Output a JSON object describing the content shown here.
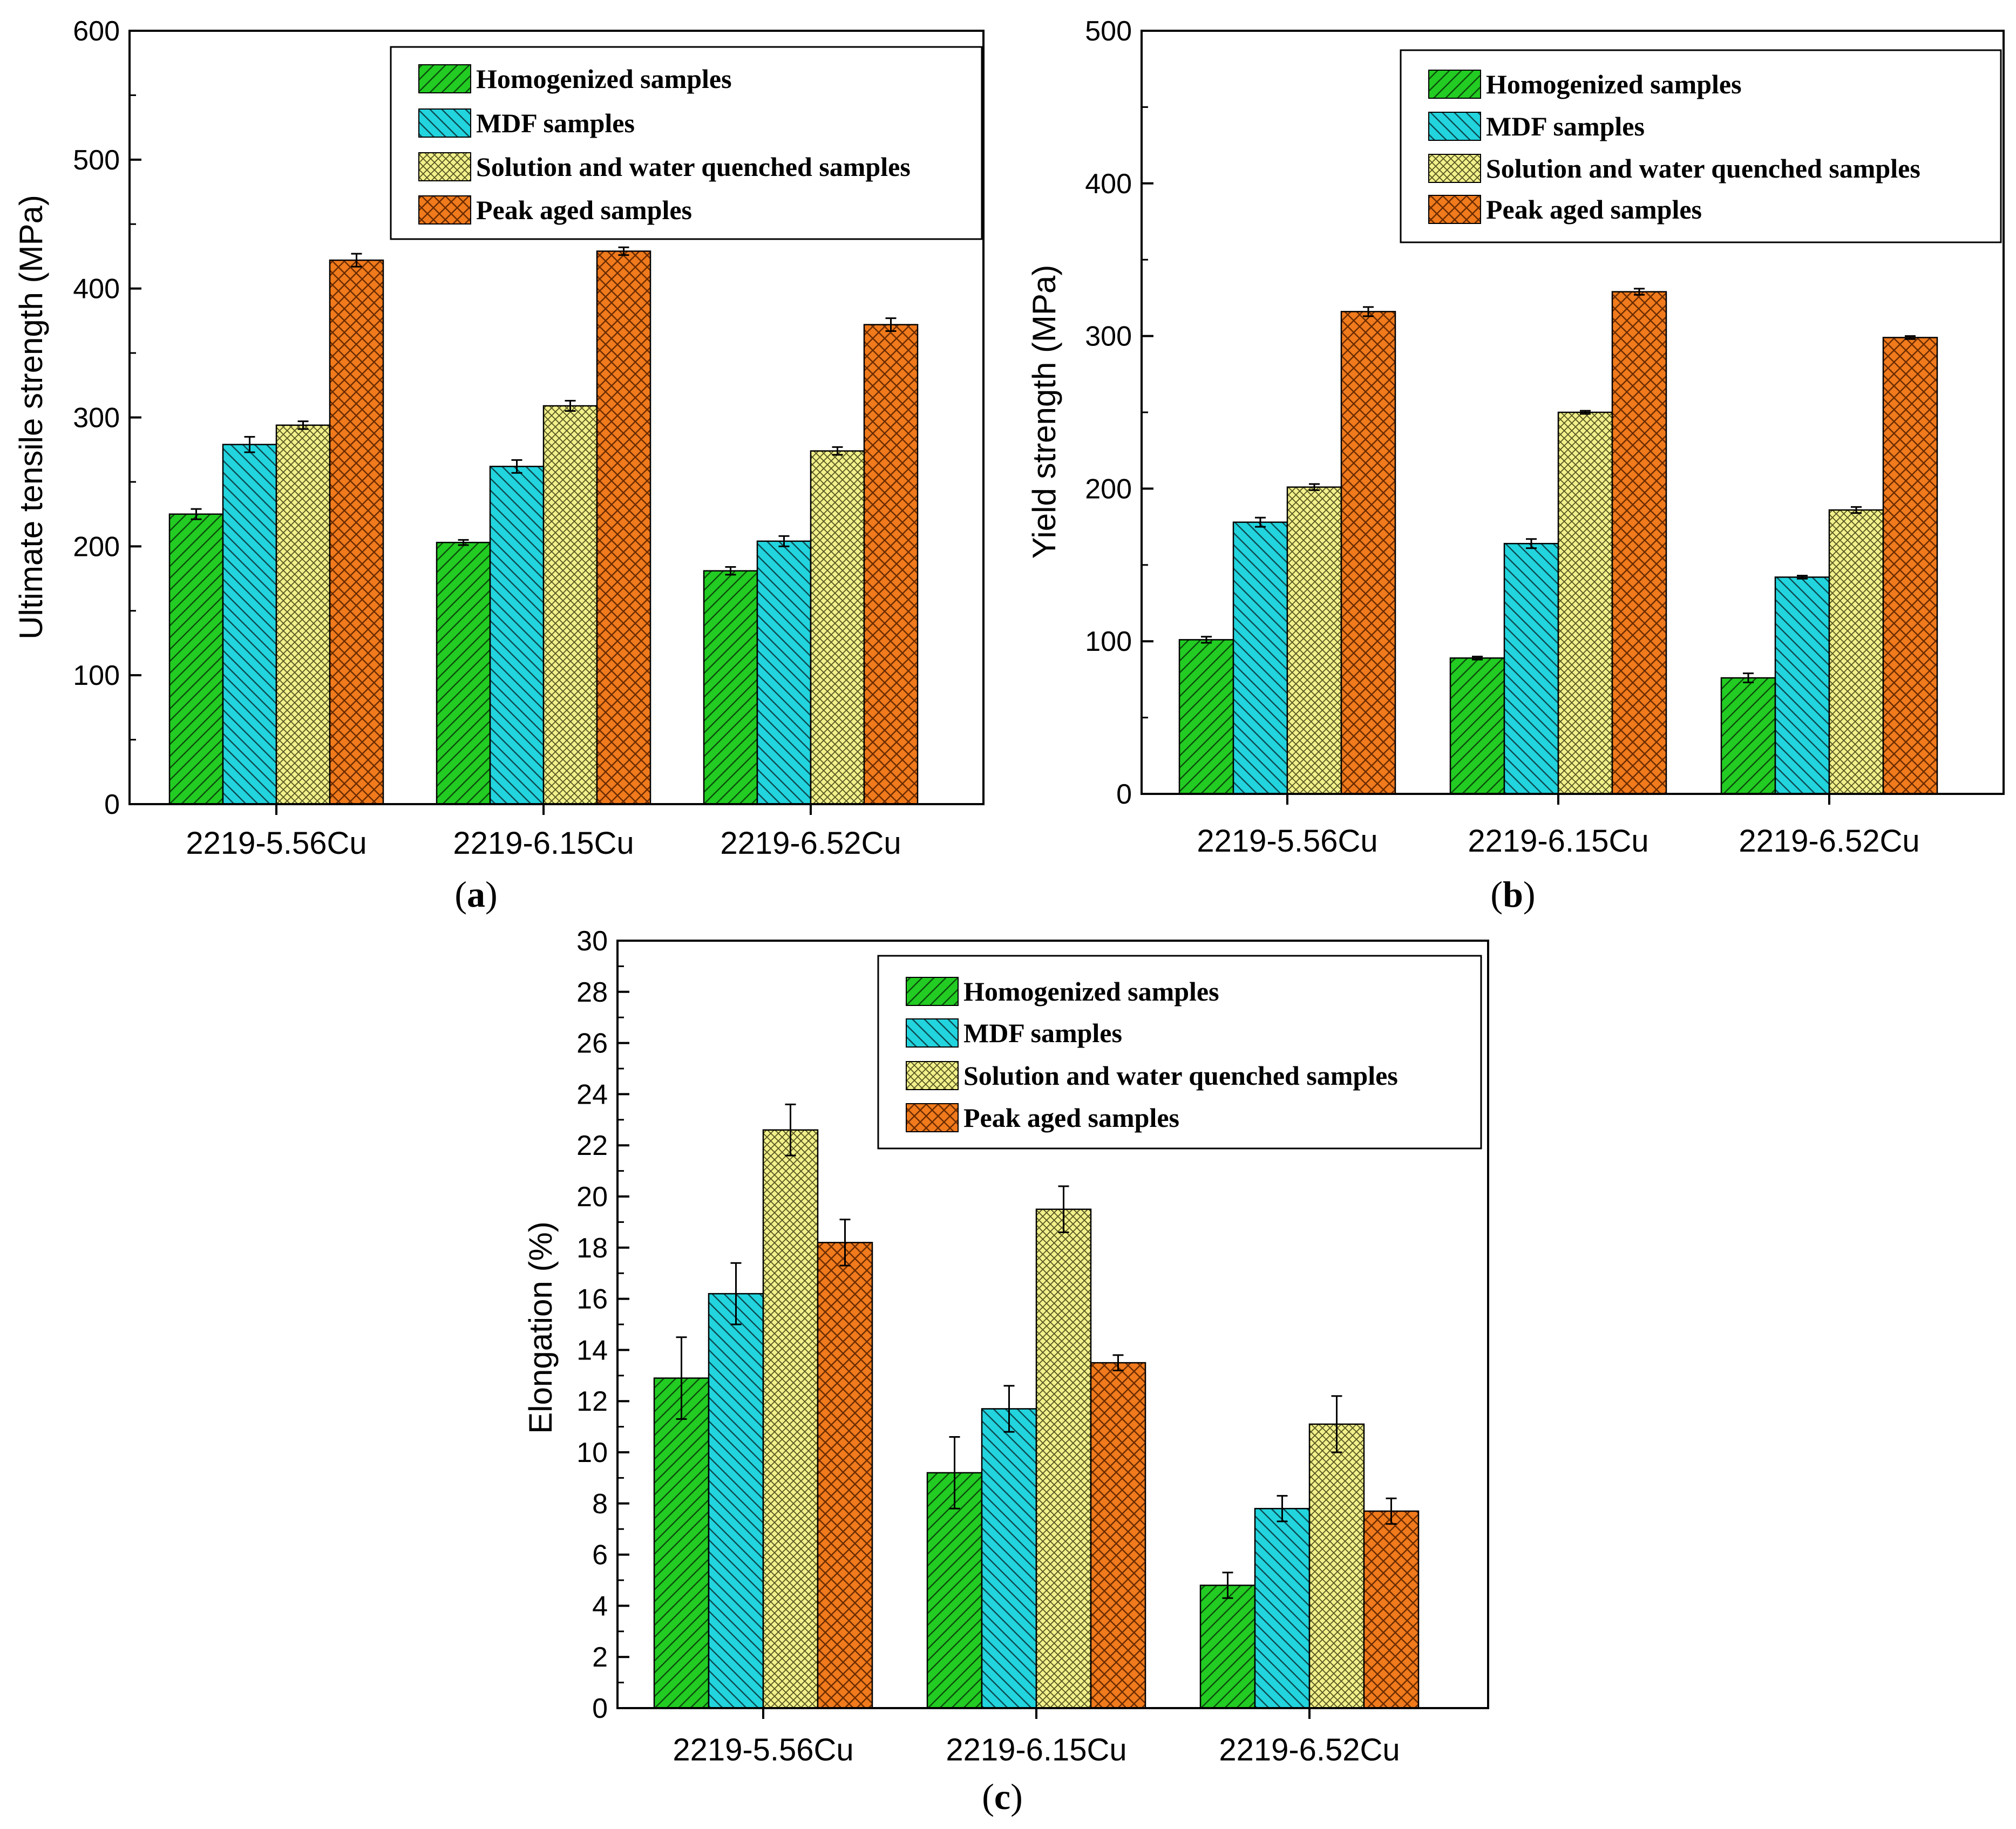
{
  "figure": {
    "legend_entries": [
      "Homogenized samples",
      "MDF samples",
      "Solution and water quenched samples",
      "Peak aged samples"
    ],
    "series_colors": [
      "#22cc22",
      "#22d4dd",
      "#f2f08a",
      "#f07a1c"
    ]
  },
  "chart_data": [
    {
      "type": "bar",
      "panel_label_open": "(",
      "panel_label_letter": "a",
      "panel_label_close": ")",
      "ylabel": "Ultimate tensile strength (MPa)",
      "xlabel": "",
      "ylim": [
        0,
        600
      ],
      "yticks": [
        0,
        100,
        200,
        300,
        400,
        500,
        600
      ],
      "categories": [
        "2219-5.56Cu",
        "2219-6.15Cu",
        "2219-6.52Cu"
      ],
      "legend_position": "top-right",
      "series": [
        {
          "name": "Homogenized samples",
          "values": [
            225,
            203,
            181
          ],
          "errors": [
            4,
            2,
            3
          ]
        },
        {
          "name": "MDF samples",
          "values": [
            279,
            262,
            204
          ],
          "errors": [
            6,
            5,
            4
          ]
        },
        {
          "name": "Solution and water quenched samples",
          "values": [
            294,
            309,
            274
          ],
          "errors": [
            3,
            4,
            3
          ]
        },
        {
          "name": "Peak aged samples",
          "values": [
            422,
            429,
            372
          ],
          "errors": [
            5,
            3,
            5
          ]
        }
      ]
    },
    {
      "type": "bar",
      "panel_label_open": "(",
      "panel_label_letter": "b",
      "panel_label_close": ")",
      "ylabel": "Yield strength (MPa)",
      "xlabel": "",
      "ylim": [
        0,
        500
      ],
      "yticks": [
        0,
        100,
        200,
        300,
        400,
        500
      ],
      "categories": [
        "2219-5.56Cu",
        "2219-6.15Cu",
        "2219-6.52Cu"
      ],
      "legend_position": "top-right",
      "series": [
        {
          "name": "Homogenized samples",
          "values": [
            101,
            89,
            76
          ],
          "errors": [
            2,
            1,
            3
          ]
        },
        {
          "name": "MDF samples",
          "values": [
            178,
            164,
            142
          ],
          "errors": [
            3,
            3,
            1
          ]
        },
        {
          "name": "Solution and water quenched samples",
          "values": [
            201,
            250,
            186
          ],
          "errors": [
            2,
            1,
            2
          ]
        },
        {
          "name": "Peak aged samples",
          "values": [
            316,
            329,
            299
          ],
          "errors": [
            3,
            2,
            1
          ]
        }
      ]
    },
    {
      "type": "bar",
      "panel_label_open": "(",
      "panel_label_letter": "c",
      "panel_label_close": ")",
      "ylabel": "Elongation (%)",
      "xlabel": "",
      "ylim": [
        0,
        30
      ],
      "yticks": [
        0,
        2,
        4,
        6,
        8,
        10,
        12,
        14,
        16,
        18,
        20,
        22,
        24,
        26,
        28,
        30
      ],
      "categories": [
        "2219-5.56Cu",
        "2219-6.15Cu",
        "2219-6.52Cu"
      ],
      "legend_position": "top-right",
      "series": [
        {
          "name": "Homogenized samples",
          "values": [
            12.9,
            9.2,
            4.8
          ],
          "errors": [
            1.6,
            1.4,
            0.5
          ]
        },
        {
          "name": "MDF samples",
          "values": [
            16.2,
            11.7,
            7.8
          ],
          "errors": [
            1.2,
            0.9,
            0.5
          ]
        },
        {
          "name": "Solution and water quenched samples",
          "values": [
            22.6,
            19.5,
            11.1
          ],
          "errors": [
            1.0,
            0.9,
            1.1
          ]
        },
        {
          "name": "Peak aged samples",
          "values": [
            18.2,
            13.5,
            7.7
          ],
          "errors": [
            0.9,
            0.3,
            0.5
          ]
        }
      ]
    }
  ]
}
